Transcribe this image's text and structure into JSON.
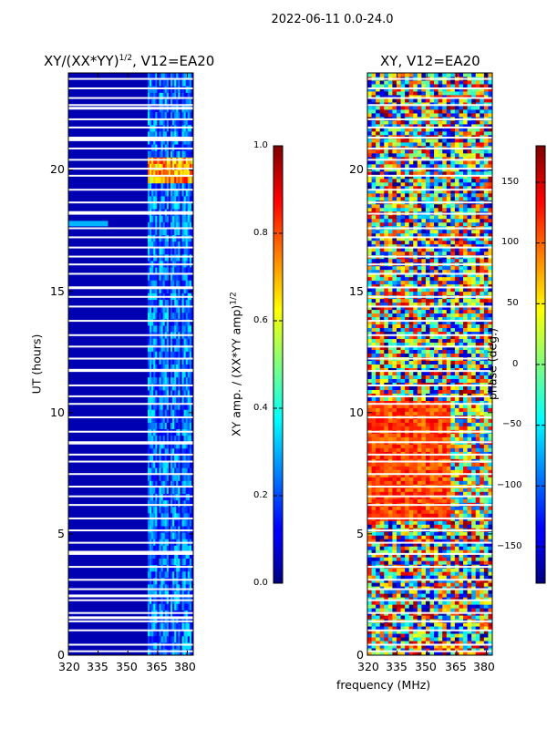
{
  "suptitle": "2022-06-11 0.0-24.0",
  "chart_data": [
    {
      "type": "heatmap",
      "title_main": "XY/(XX*YY)",
      "title_sup": "1/2",
      "title_rest": ", V12=EA20",
      "xlabel": "frequency (MHz)",
      "ylabel": "UT (hours)",
      "x_range": [
        320,
        383
      ],
      "y_range": [
        0,
        24
      ],
      "x_ticks": [
        320,
        335,
        350,
        365,
        380
      ],
      "y_ticks": [
        0,
        5,
        10,
        15,
        20
      ],
      "colorbar": {
        "label_main": "XY amp. / (XX*YY amp)",
        "label_sup": "1/2",
        "range": [
          0.0,
          1.0
        ],
        "ticks": [
          "0.0",
          "0.2",
          "0.4",
          "0.6",
          "0.8",
          "1.0"
        ]
      },
      "description_values": {
        "background_level": 0.02,
        "band_365_383_level": 0.3,
        "hot_spot_ut_20_level": 0.8
      }
    },
    {
      "type": "heatmap",
      "title": "XY, V12=EA20",
      "xlabel": "frequency (MHz)",
      "x_range": [
        320,
        383
      ],
      "y_range": [
        0,
        24
      ],
      "x_ticks": [
        320,
        335,
        350,
        365,
        380
      ],
      "y_ticks": [
        0,
        5,
        10,
        15,
        20
      ],
      "colorbar": {
        "label": "phase (deg.)",
        "range": [
          -180,
          180
        ],
        "ticks": [
          "−150",
          "−100",
          "−50",
          "0",
          "50",
          "100",
          "150"
        ]
      }
    }
  ],
  "colors": {
    "jet_dark_blue": "#000080",
    "jet_blue": "#0000ff",
    "jet_cyan": "#00ffff",
    "jet_yellow": "#ffff00",
    "jet_red": "#ff0000",
    "jet_dark_red": "#800000"
  }
}
